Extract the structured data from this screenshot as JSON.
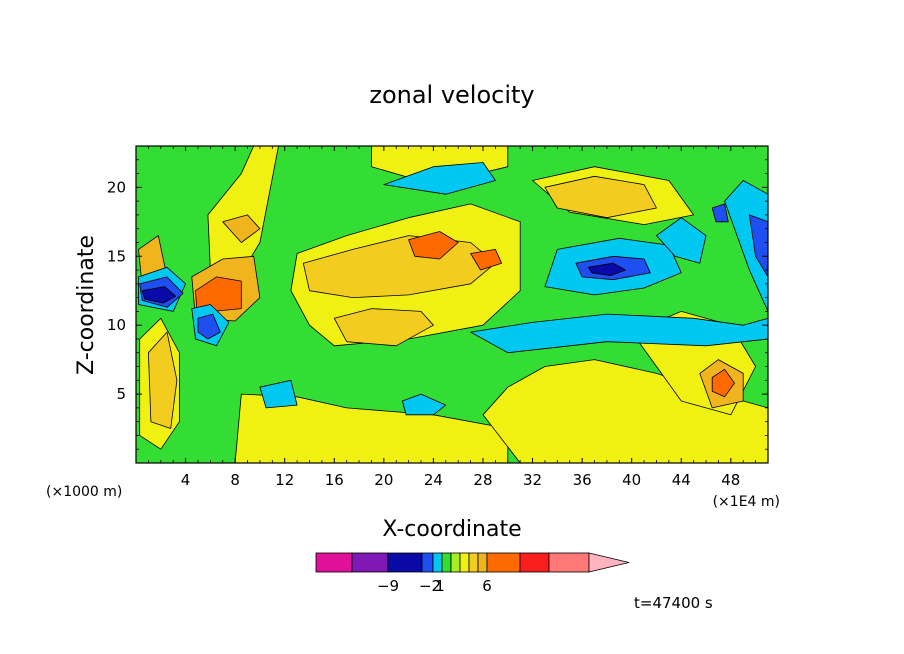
{
  "chart_data": {
    "type": "heatmap",
    "title": "zonal velocity",
    "xlabel": "X-coordinate",
    "ylabel": "Z-coordinate",
    "x_unit_left": "(×1000 m)",
    "x_unit_right": "(×1E4 m)",
    "xlim": [
      0,
      51
    ],
    "ylim": [
      0,
      23
    ],
    "x_ticks": [
      4,
      8,
      12,
      16,
      20,
      24,
      28,
      32,
      36,
      40,
      44,
      48
    ],
    "y_ticks": [
      5,
      10,
      15,
      20
    ],
    "time_label": "t=47400 s",
    "colorbar": {
      "tick_values": [
        -9,
        -2,
        1,
        6
      ],
      "tick_labels": [
        "−9",
        "−2",
        "1",
        "6"
      ],
      "colors": [
        "#e0109a",
        "#7f18b4",
        "#0a0aa8",
        "#1f4ff0",
        "#00c8f0",
        "#33dd33",
        "#a8ee22",
        "#f0f012",
        "#f2cc1e",
        "#f0b41e",
        "#ff6a00",
        "#f81e1e",
        "#ff7878",
        "#ffb4c0"
      ]
    },
    "regions": [
      {
        "level": 1,
        "color": "#33dd33",
        "points": [
          [
            0,
            0
          ],
          [
            51,
            0
          ],
          [
            51,
            23
          ],
          [
            0,
            23
          ]
        ]
      },
      {
        "level": 2,
        "color": "#f0f012",
        "points": [
          [
            8,
            0
          ],
          [
            30,
            0
          ],
          [
            30,
            2.5
          ],
          [
            24,
            3.5
          ],
          [
            17,
            4
          ],
          [
            13,
            4.8
          ],
          [
            8.5,
            5
          ]
        ]
      },
      {
        "level": 2,
        "color": "#f0f012",
        "points": [
          [
            31,
            0
          ],
          [
            51,
            0
          ],
          [
            51,
            4
          ],
          [
            47,
            5
          ],
          [
            42,
            6.5
          ],
          [
            37,
            7.5
          ],
          [
            33,
            7
          ],
          [
            30,
            5.5
          ],
          [
            28,
            3.5
          ]
        ]
      },
      {
        "level": 2,
        "color": "#f0f012",
        "points": [
          [
            13,
            15.2
          ],
          [
            17,
            16.5
          ],
          [
            22,
            17.8
          ],
          [
            27,
            18.8
          ],
          [
            31,
            17.5
          ],
          [
            31,
            12.5
          ],
          [
            28,
            10
          ],
          [
            22,
            9
          ],
          [
            16,
            8.5
          ],
          [
            14,
            10
          ],
          [
            12.5,
            12.5
          ]
        ]
      },
      {
        "level": 2,
        "color": "#f0f012",
        "points": [
          [
            19,
            23
          ],
          [
            30,
            23
          ],
          [
            30,
            21.5
          ],
          [
            24,
            20.2
          ],
          [
            19,
            21.5
          ]
        ]
      },
      {
        "level": 2,
        "color": "#f0f012",
        "points": [
          [
            32,
            20.5
          ],
          [
            37,
            21.5
          ],
          [
            43,
            20.5
          ],
          [
            45,
            18
          ],
          [
            41,
            17.3
          ],
          [
            35,
            18.2
          ]
        ]
      },
      {
        "level": 2,
        "color": "#f0f012",
        "points": [
          [
            0.3,
            9
          ],
          [
            2,
            10.5
          ],
          [
            3.5,
            8
          ],
          [
            3.5,
            3
          ],
          [
            2,
            1
          ],
          [
            0.3,
            2
          ]
        ]
      },
      {
        "level": 2,
        "color": "#f0f012",
        "points": [
          [
            5.8,
            18
          ],
          [
            8.5,
            21
          ],
          [
            9.5,
            23
          ],
          [
            11.5,
            23
          ],
          [
            10,
            16
          ],
          [
            8,
            13
          ],
          [
            6,
            14
          ]
        ]
      },
      {
        "level": 2,
        "color": "#f0f012",
        "points": [
          [
            40,
            9.5
          ],
          [
            44,
            11
          ],
          [
            48,
            10
          ],
          [
            50,
            7
          ],
          [
            48,
            3.5
          ],
          [
            44,
            4.5
          ],
          [
            42,
            7
          ]
        ]
      },
      {
        "level": 3,
        "color": "#f2cc1e",
        "points": [
          [
            13.5,
            14.5
          ],
          [
            17.5,
            15.5
          ],
          [
            22,
            16.5
          ],
          [
            27,
            16
          ],
          [
            29,
            14.5
          ],
          [
            27,
            13
          ],
          [
            22,
            12.2
          ],
          [
            17.5,
            12
          ],
          [
            14,
            12.5
          ]
        ]
      },
      {
        "level": 3,
        "color": "#f2cc1e",
        "points": [
          [
            16,
            10.5
          ],
          [
            19,
            11.2
          ],
          [
            23,
            11
          ],
          [
            24,
            10
          ],
          [
            21,
            8.5
          ],
          [
            17,
            8.8
          ]
        ]
      },
      {
        "level": 3,
        "color": "#f2cc1e",
        "points": [
          [
            33,
            20
          ],
          [
            37,
            20.8
          ],
          [
            41,
            20.2
          ],
          [
            42,
            18.5
          ],
          [
            38,
            17.8
          ],
          [
            34,
            18.5
          ]
        ]
      },
      {
        "level": 3,
        "color": "#f2cc1e",
        "points": [
          [
            1,
            8
          ],
          [
            2.5,
            9.5
          ],
          [
            3.3,
            6
          ],
          [
            2.8,
            2.5
          ],
          [
            1.2,
            3
          ]
        ]
      },
      {
        "level": 3,
        "color": "#f0b41e",
        "points": [
          [
            4.5,
            13.5
          ],
          [
            7,
            14.8
          ],
          [
            9.5,
            15
          ],
          [
            10,
            12
          ],
          [
            8,
            10.3
          ],
          [
            4.8,
            10.5
          ]
        ]
      },
      {
        "level": 3,
        "color": "#f0b41e",
        "points": [
          [
            45.5,
            6.5
          ],
          [
            47,
            7.5
          ],
          [
            49,
            6.5
          ],
          [
            49,
            4.5
          ],
          [
            46.5,
            4
          ]
        ]
      },
      {
        "level": 3,
        "color": "#f0b41e",
        "points": [
          [
            0.2,
            15.5
          ],
          [
            1.8,
            16.5
          ],
          [
            2.5,
            13.5
          ],
          [
            0.5,
            12.8
          ]
        ]
      },
      {
        "level": 3,
        "color": "#f0b41e",
        "points": [
          [
            7,
            17.5
          ],
          [
            9,
            18
          ],
          [
            10,
            17
          ],
          [
            8.5,
            16
          ]
        ]
      },
      {
        "level": 4,
        "color": "#ff6a00",
        "points": [
          [
            4.8,
            12.5
          ],
          [
            6.5,
            13.5
          ],
          [
            8.5,
            13.2
          ],
          [
            8.5,
            11.2
          ],
          [
            6.2,
            11
          ],
          [
            4.9,
            11.2
          ]
        ]
      },
      {
        "level": 4,
        "color": "#ff6a00",
        "points": [
          [
            22,
            16.2
          ],
          [
            24.5,
            16.8
          ],
          [
            26,
            16
          ],
          [
            24.5,
            14.8
          ],
          [
            22.5,
            15
          ]
        ]
      },
      {
        "level": 4,
        "color": "#ff6a00",
        "points": [
          [
            46.5,
            6.2
          ],
          [
            47.5,
            6.8
          ],
          [
            48.3,
            5.8
          ],
          [
            47.5,
            4.8
          ],
          [
            46.5,
            5.2
          ]
        ]
      },
      {
        "level": 4,
        "color": "#ff6a00",
        "points": [
          [
            27,
            15.2
          ],
          [
            29,
            15.5
          ],
          [
            29.5,
            14.5
          ],
          [
            27.8,
            14
          ]
        ]
      },
      {
        "level": 0,
        "color": "#00c8f0",
        "points": [
          [
            34,
            15.5
          ],
          [
            39,
            16.3
          ],
          [
            43,
            15.8
          ],
          [
            44,
            13.8
          ],
          [
            41,
            12.7
          ],
          [
            37,
            12.2
          ],
          [
            33,
            12.8
          ]
        ]
      },
      {
        "level": 0,
        "color": "#00c8f0",
        "points": [
          [
            27,
            9.5
          ],
          [
            32,
            10.2
          ],
          [
            38,
            10.8
          ],
          [
            45,
            10.5
          ],
          [
            49,
            10
          ],
          [
            51,
            10.5
          ],
          [
            51,
            9
          ],
          [
            46,
            8.5
          ],
          [
            38,
            8.8
          ],
          [
            30,
            8
          ]
        ]
      },
      {
        "level": 0,
        "color": "#00c8f0",
        "points": [
          [
            20,
            20.2
          ],
          [
            24,
            21.5
          ],
          [
            28,
            21.8
          ],
          [
            29,
            20.5
          ],
          [
            25,
            19.5
          ]
        ]
      },
      {
        "level": 0,
        "color": "#00c8f0",
        "points": [
          [
            21.5,
            4.5
          ],
          [
            23,
            5
          ],
          [
            25,
            4.2
          ],
          [
            24,
            3.5
          ],
          [
            21.8,
            3.5
          ]
        ]
      },
      {
        "level": 0,
        "color": "#00c8f0",
        "points": [
          [
            10,
            5.5
          ],
          [
            12.5,
            6
          ],
          [
            13,
            4.2
          ],
          [
            10.5,
            4
          ]
        ]
      },
      {
        "level": 0,
        "color": "#00c8f0",
        "points": [
          [
            0.2,
            13.5
          ],
          [
            2.5,
            14.2
          ],
          [
            4,
            13
          ],
          [
            3,
            11
          ],
          [
            0.2,
            11.5
          ]
        ]
      },
      {
        "level": 0,
        "color": "#00c8f0",
        "points": [
          [
            4.5,
            11.2
          ],
          [
            6,
            11.5
          ],
          [
            7.5,
            10.2
          ],
          [
            6.5,
            8.5
          ],
          [
            4.8,
            9
          ]
        ]
      },
      {
        "level": 0,
        "color": "#00c8f0",
        "points": [
          [
            47.5,
            19
          ],
          [
            49,
            20.5
          ],
          [
            51,
            19.5
          ],
          [
            51,
            11
          ],
          [
            49.5,
            14
          ]
        ]
      },
      {
        "level": 0,
        "color": "#00c8f0",
        "points": [
          [
            42,
            16.5
          ],
          [
            44,
            17.8
          ],
          [
            46,
            16.5
          ],
          [
            45.5,
            14.5
          ],
          [
            43.5,
            15
          ]
        ]
      },
      {
        "level": -1,
        "color": "#1f4ff0",
        "points": [
          [
            35.5,
            14.5
          ],
          [
            38.5,
            15
          ],
          [
            41,
            14.8
          ],
          [
            41.5,
            13.8
          ],
          [
            38.5,
            13.3
          ],
          [
            36,
            13.5
          ]
        ]
      },
      {
        "level": -1,
        "color": "#1f4ff0",
        "points": [
          [
            0.3,
            13
          ],
          [
            2.5,
            13.5
          ],
          [
            3.8,
            12.3
          ],
          [
            2.5,
            11.3
          ],
          [
            0.5,
            11.8
          ]
        ]
      },
      {
        "level": -1,
        "color": "#1f4ff0",
        "points": [
          [
            5,
            10.5
          ],
          [
            6.2,
            10.8
          ],
          [
            6.8,
            9.5
          ],
          [
            5.8,
            9
          ],
          [
            5,
            9.5
          ]
        ]
      },
      {
        "level": -1,
        "color": "#1f4ff0",
        "points": [
          [
            49.5,
            18
          ],
          [
            51,
            17.5
          ],
          [
            51,
            13.5
          ],
          [
            50,
            15
          ]
        ]
      },
      {
        "level": -1,
        "color": "#1f4ff0",
        "points": [
          [
            46.5,
            18.5
          ],
          [
            47.5,
            18.8
          ],
          [
            47.8,
            17.5
          ],
          [
            46.8,
            17.5
          ]
        ]
      },
      {
        "level": -2,
        "color": "#0a0aa8",
        "points": [
          [
            36.5,
            14.2
          ],
          [
            38.5,
            14.5
          ],
          [
            39.5,
            14
          ],
          [
            38.3,
            13.6
          ],
          [
            36.8,
            13.8
          ]
        ]
      },
      {
        "level": -2,
        "color": "#0a0aa8",
        "points": [
          [
            0.5,
            12.5
          ],
          [
            2.3,
            12.8
          ],
          [
            3.2,
            12.1
          ],
          [
            2.2,
            11.6
          ],
          [
            0.7,
            11.9
          ]
        ]
      }
    ]
  }
}
